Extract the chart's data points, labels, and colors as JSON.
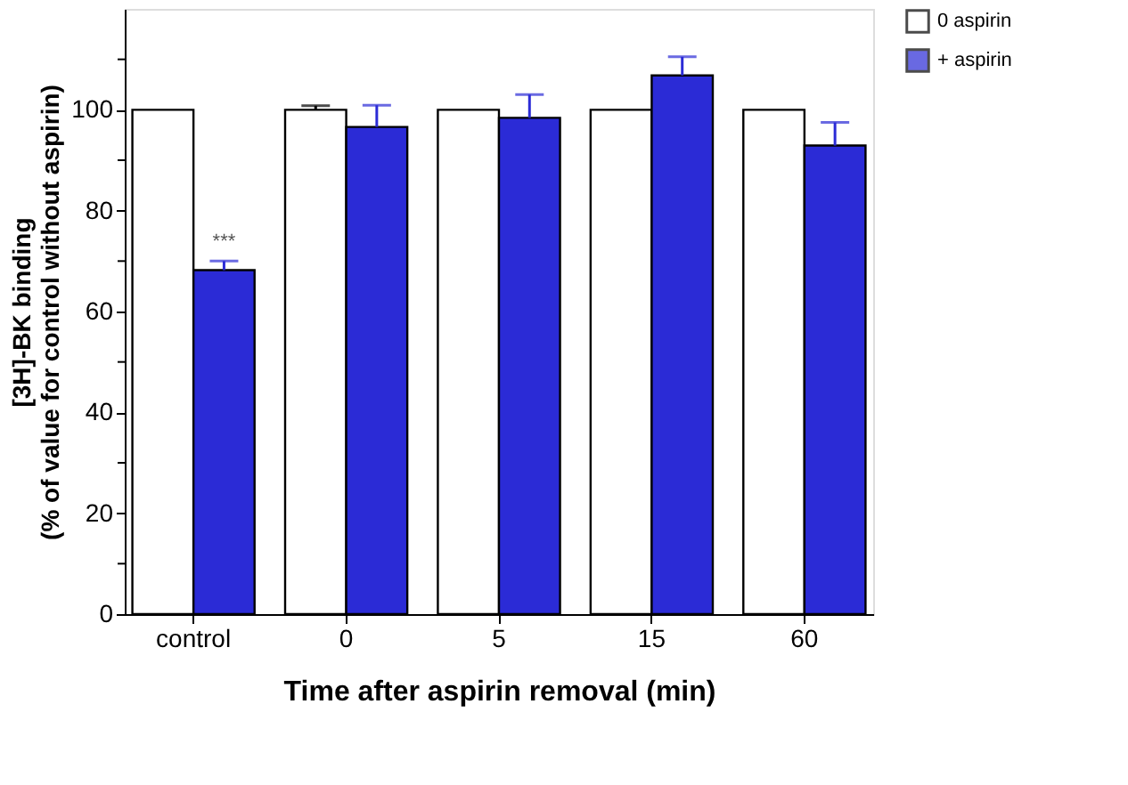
{
  "chart_data": {
    "type": "bar",
    "categories": [
      "control",
      "0",
      "5",
      "15",
      "60"
    ],
    "xlabel": "Time after aspirin removal (min)",
    "ylabel": "[3H]-BK binding\n(% of value for control without aspirin)",
    "series": [
      {
        "name": "0 aspirin",
        "color": "#ffffff",
        "values": [
          100,
          100,
          100,
          100,
          100
        ],
        "errors": [
          null,
          0.8,
          null,
          null,
          null
        ]
      },
      {
        "name": "+ aspirin",
        "color": "#2b2bd6",
        "values": [
          68.2,
          96.6,
          98.4,
          106.8,
          92.9
        ],
        "errors": [
          1.8,
          4.3,
          4.6,
          3.7,
          4.6
        ]
      }
    ],
    "ylim": [
      0,
      120
    ],
    "yticks": [
      0,
      {
        "value": 10,
        "label": null
      },
      20,
      {
        "value": 30,
        "label": null
      },
      40,
      {
        "value": 50,
        "label": null
      },
      60,
      {
        "value": 70,
        "label": null
      },
      80,
      {
        "value": 90,
        "label": null
      },
      100,
      {
        "value": 110,
        "label": null
      }
    ],
    "annotations": [
      {
        "text": "***",
        "x": "control",
        "y": 72
      }
    ],
    "legend": "right",
    "grid": false
  }
}
